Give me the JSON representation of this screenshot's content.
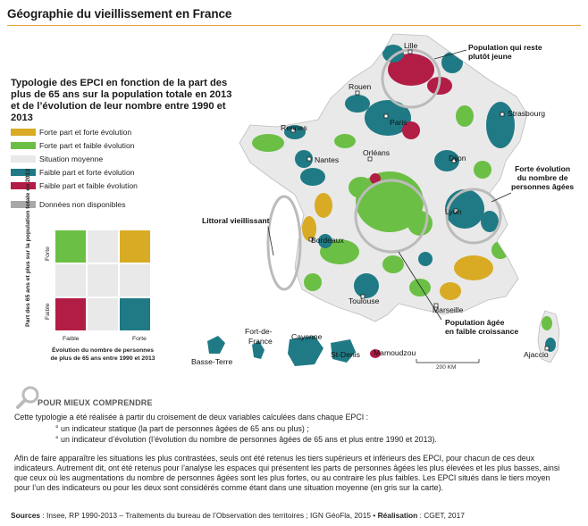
{
  "title": "Géographie du vieillissement en France",
  "subtitle": "Typologie des EPCI en fonction de la part des plus de 65 ans sur la population totale en 2013 et de l’évolution de leur nombre entre 1990 et 2013",
  "colors": {
    "forte_forte": "#d9ab24",
    "forte_faible": "#6bbf45",
    "moyenne": "#e9e9e9",
    "faible_forte": "#1f7a85",
    "faible_faible": "#b21d45",
    "na": "#a8a8a8",
    "accent": "#e8a33b"
  },
  "legend": {
    "items": [
      {
        "label": "Forte part et forte évolution",
        "color": "#d9ab24"
      },
      {
        "label": "Forte part et faible évolution",
        "color": "#6bbf45"
      },
      {
        "label": "Situation moyenne",
        "color": "#e9e9e9"
      },
      {
        "label": "Faible part et forte évolution",
        "color": "#1f7a85"
      },
      {
        "label": "Faible part et faible évolution",
        "color": "#b21d45"
      }
    ],
    "na": "Données non disponibles"
  },
  "matrix": {
    "ylabel": "Part des 65 ans et plus sur la population totale en 2013",
    "y_top": "Forte",
    "y_bottom": "Faible",
    "x_left": "Faible",
    "x_right": "Forte",
    "xlabel_1": "Évolution du nombre de personnes",
    "xlabel_2": "de plus de 65 ans entre 1990 et 2013"
  },
  "cities": {
    "lille": "Lille",
    "rouen": "Rouen",
    "paris": "Paris",
    "strasbourg": "Strasbourg",
    "rennes": "Rennes",
    "nantes": "Nantes",
    "orleans": "Orléans",
    "dijon": "Dijon",
    "lyon": "Lyon",
    "bordeaux": "Bordeaux",
    "toulouse": "Toulouse",
    "marseille": "Marseille",
    "ajaccio": "Ajaccio",
    "fort_de_france_1": "Fort-de-",
    "fort_de_france_2": "France",
    "basse_terre": "Basse-Terre",
    "cayenne": "Cayenne",
    "saint_denis": "St-Denis",
    "mamoudzou": "Mamoudzou"
  },
  "callouts": {
    "jeune_1": "Population qui reste",
    "jeune_2": "plutôt jeune",
    "forte_evol_1": "Forte évolution",
    "forte_evol_2": "du nombre de",
    "forte_evol_3": "personnes âgées",
    "littoral": "Littoral vieillissant",
    "agee_1": "Population âgée",
    "agee_2": "en faible croissance"
  },
  "scale": "200 KM",
  "comprendre": "POUR MIEUX COMPRENDRE",
  "text": {
    "p1": "Cette typologie a été réalisée à partir du croisement de deux variables calculées dans chaque EPCI :",
    "b1": "° un indicateur statique (la part de personnes âgées de 65 ans ou plus) ;",
    "b2": "° un indicateur d’évolution (l’évolution du nombre de personnes âgées de 65 ans et plus entre 1990 et 2013).",
    "p2_1": "Afin de faire apparaître les situations les plus contrastées, seuls ont été retenus les tiers supérieurs et inférieurs des EPCI, pour chacun de ces deux",
    "p2_2": "indicateurs. Autrement dit, ont été retenus pour l’analyse les espaces qui présentent les parts de personnes âgées les plus élevées et les plus basses, ainsi",
    "p2_3": "que ceux où les augmentations du nombre de personnes âgées sont les plus fortes, ou au contraire les plus faibles. Les EPCI situés dans le tiers moyen",
    "p2_4": "pour l’un des indicateurs ou pour les deux sont considérés comme étant dans une situation moyenne (en gris sur la carte)."
  },
  "sources": {
    "label": "Sources",
    "text": " : Insee, RP 1990-2013 – Traitements du bureau de l’Observation des territoires ; IGN GéoFla, 2015 • ",
    "real_label": "Réalisation",
    "real_text": " : CGET, 2017"
  }
}
